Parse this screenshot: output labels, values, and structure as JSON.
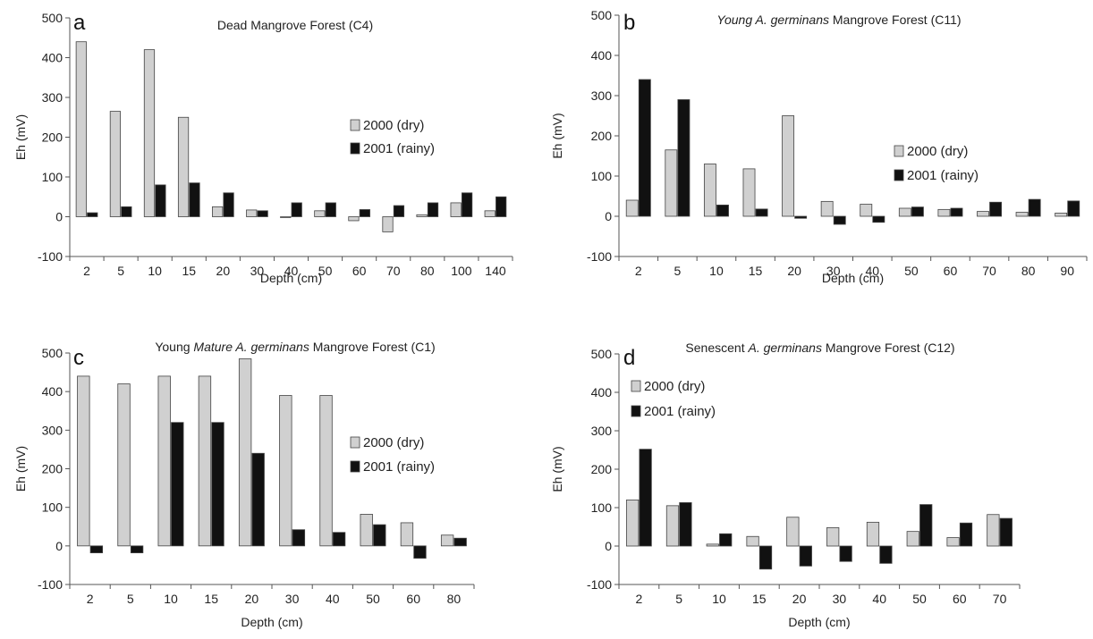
{
  "colors": {
    "dry": "#d0d0d0",
    "rainy": "#111111",
    "bar_stroke": "#444444"
  },
  "chart_data": [
    {
      "type": "bar",
      "letter": "a",
      "title_parts": [
        {
          "text": "Dead Mangrove Forest (C4)",
          "italic": false
        }
      ],
      "xlabel": "Depth (cm)",
      "ylabel": "Eh (mV)",
      "ylim": [
        -100,
        500
      ],
      "yticks": [
        -100,
        0,
        100,
        200,
        300,
        400,
        500
      ],
      "categories": [
        "2",
        "5",
        "10",
        "15",
        "20",
        "30",
        "40",
        "50",
        "60",
        "70",
        "80",
        "100",
        "140"
      ],
      "series": [
        {
          "name": "2000 (dry)",
          "values": [
            440,
            265,
            420,
            250,
            25,
            17,
            0,
            15,
            -10,
            -38,
            5,
            35,
            15
          ]
        },
        {
          "name": "2001 (rainy)",
          "values": [
            10,
            25,
            80,
            85,
            60,
            15,
            35,
            35,
            18,
            28,
            35,
            60,
            50
          ]
        }
      ],
      "legend_position": "center-right"
    },
    {
      "type": "bar",
      "letter": "b",
      "title_parts": [
        {
          "text": "Young A. germinans",
          "italic": true
        },
        {
          "text": " Mangrove Forest (C11)",
          "italic": false
        }
      ],
      "xlabel": "Depth (cm)",
      "ylabel": "Eh (mV)",
      "ylim": [
        -100,
        500
      ],
      "yticks": [
        -100,
        0,
        100,
        200,
        300,
        400,
        500
      ],
      "categories": [
        "2",
        "5",
        "10",
        "15",
        "20",
        "30",
        "40",
        "50",
        "60",
        "70",
        "80",
        "90"
      ],
      "series": [
        {
          "name": "2000 (dry)",
          "values": [
            40,
            165,
            130,
            118,
            250,
            37,
            30,
            20,
            17,
            12,
            10,
            8
          ]
        },
        {
          "name": "2001 (rainy)",
          "values": [
            340,
            290,
            28,
            18,
            -5,
            -20,
            -15,
            23,
            20,
            35,
            42,
            38
          ]
        }
      ],
      "legend_position": "center-right"
    },
    {
      "type": "bar",
      "letter": "c",
      "title_parts": [
        {
          "text": "Young ",
          "italic": false
        },
        {
          "text": "Mature A. germinans",
          "italic": true
        },
        {
          "text": " Mangrove Forest (C1)",
          "italic": false
        }
      ],
      "xlabel": "Depth (cm)",
      "ylabel": "Eh (mV)",
      "ylim": [
        -100,
        500
      ],
      "yticks": [
        -100,
        0,
        100,
        200,
        300,
        400,
        500
      ],
      "categories": [
        "2",
        "5",
        "10",
        "15",
        "20",
        "30",
        "40",
        "50",
        "60",
        "80"
      ],
      "series": [
        {
          "name": "2000 (dry)",
          "values": [
            440,
            420,
            440,
            440,
            485,
            390,
            390,
            82,
            60,
            28
          ]
        },
        {
          "name": "2001 (rainy)",
          "values": [
            -18,
            -18,
            320,
            320,
            240,
            42,
            35,
            55,
            -32,
            20
          ]
        }
      ],
      "legend_position": "center-right"
    },
    {
      "type": "bar",
      "letter": "d",
      "title_parts": [
        {
          "text": "Senescent ",
          "italic": false
        },
        {
          "text": "A. germinans",
          "italic": true
        },
        {
          "text": " Mangrove Forest (C12)",
          "italic": false
        }
      ],
      "xlabel": "Depth (cm)",
      "ylabel": "Eh (mV)",
      "ylim": [
        -100,
        500
      ],
      "yticks": [
        -100,
        0,
        100,
        200,
        300,
        400,
        500
      ],
      "categories": [
        "2",
        "5",
        "10",
        "15",
        "20",
        "30",
        "40",
        "50",
        "60",
        "70"
      ],
      "series": [
        {
          "name": "2000 (dry)",
          "values": [
            120,
            105,
            5,
            25,
            75,
            48,
            62,
            38,
            22,
            82
          ]
        },
        {
          "name": "2001 (rainy)",
          "values": [
            252,
            113,
            32,
            -60,
            -52,
            -40,
            -45,
            108,
            60,
            72
          ]
        }
      ],
      "legend_position": "top-left"
    }
  ]
}
